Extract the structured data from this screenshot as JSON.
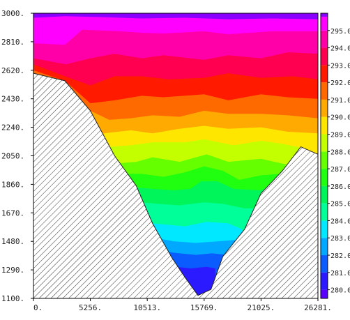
{
  "chart_data": {
    "type": "contour",
    "title": "",
    "xlabel": "",
    "ylabel": "",
    "xlim": [
      0,
      26281
    ],
    "ylim": [
      1100,
      3000
    ],
    "x_ticks": [
      "0.",
      "5256.",
      "10513.",
      "15769.",
      "21025.",
      "26281."
    ],
    "x_tick_values": [
      0,
      5256,
      10513,
      15769,
      21025,
      26281
    ],
    "y_ticks": [
      "3000.",
      "2810.",
      "2620.",
      "2430.",
      "2240.",
      "2050.",
      "1860.",
      "1670.",
      "1480.",
      "1290.",
      "1100."
    ],
    "y_tick_values": [
      3000,
      2810,
      2620,
      2430,
      2240,
      2050,
      1860,
      1670,
      1480,
      1290,
      1100
    ],
    "terrain_profile": [
      {
        "x": 0,
        "y": 2600
      },
      {
        "x": 2900,
        "y": 2550
      },
      {
        "x": 5256,
        "y": 2350
      },
      {
        "x": 7500,
        "y": 2050
      },
      {
        "x": 9500,
        "y": 1850
      },
      {
        "x": 11000,
        "y": 1600
      },
      {
        "x": 12800,
        "y": 1370
      },
      {
        "x": 14000,
        "y": 1240
      },
      {
        "x": 15200,
        "y": 1120
      },
      {
        "x": 16400,
        "y": 1160
      },
      {
        "x": 17500,
        "y": 1380
      },
      {
        "x": 19500,
        "y": 1560
      },
      {
        "x": 21025,
        "y": 1800
      },
      {
        "x": 23000,
        "y": 1950
      },
      {
        "x": 24700,
        "y": 2110
      },
      {
        "x": 26281,
        "y": 2060
      }
    ],
    "contour_bounds": [
      {
        "level": 295.0,
        "points": [
          [
            0,
            2970
          ],
          [
            2900,
            2980
          ],
          [
            6000,
            2975
          ],
          [
            10000,
            2965
          ],
          [
            14000,
            2970
          ],
          [
            18000,
            2960
          ],
          [
            22000,
            2965
          ],
          [
            26281,
            2960
          ]
        ]
      },
      {
        "level": 294.0,
        "points": [
          [
            0,
            2800
          ],
          [
            2900,
            2790
          ],
          [
            4500,
            2890
          ],
          [
            8000,
            2880
          ],
          [
            10000,
            2870
          ],
          [
            12000,
            2865
          ],
          [
            15769,
            2880
          ],
          [
            18000,
            2860
          ],
          [
            22000,
            2880
          ],
          [
            26281,
            2880
          ]
        ]
      },
      {
        "level": 293.0,
        "points": [
          [
            0,
            2700
          ],
          [
            3000,
            2660
          ],
          [
            5256,
            2700
          ],
          [
            7500,
            2730
          ],
          [
            10000,
            2700
          ],
          [
            12000,
            2720
          ],
          [
            15769,
            2690
          ],
          [
            18000,
            2720
          ],
          [
            21025,
            2700
          ],
          [
            23500,
            2740
          ],
          [
            26281,
            2730
          ]
        ]
      },
      {
        "level": 292.0,
        "points": [
          [
            0,
            2660
          ],
          [
            2900,
            2580
          ],
          [
            5256,
            2520
          ],
          [
            7500,
            2580
          ],
          [
            10000,
            2580
          ],
          [
            12500,
            2560
          ],
          [
            15769,
            2570
          ],
          [
            18000,
            2600
          ],
          [
            21025,
            2570
          ],
          [
            24000,
            2580
          ],
          [
            26281,
            2560
          ]
        ]
      },
      {
        "level": 291.0,
        "points": [
          [
            0,
            2620
          ],
          [
            2900,
            2550
          ],
          [
            5256,
            2400
          ],
          [
            7500,
            2420
          ],
          [
            10000,
            2450
          ],
          [
            12000,
            2440
          ],
          [
            15769,
            2460
          ],
          [
            18000,
            2420
          ],
          [
            21025,
            2460
          ],
          [
            23500,
            2440
          ],
          [
            26281,
            2430
          ]
        ]
      },
      {
        "level": 290.0,
        "points": [
          [
            5256,
            2350
          ],
          [
            7000,
            2290
          ],
          [
            9000,
            2300
          ],
          [
            11000,
            2320
          ],
          [
            13500,
            2310
          ],
          [
            15769,
            2350
          ],
          [
            18000,
            2330
          ],
          [
            21025,
            2330
          ],
          [
            23500,
            2320
          ],
          [
            26281,
            2300
          ]
        ]
      },
      {
        "level": 289.0,
        "points": [
          [
            6500,
            2200
          ],
          [
            9000,
            2220
          ],
          [
            11000,
            2200
          ],
          [
            13500,
            2230
          ],
          [
            15769,
            2250
          ],
          [
            18000,
            2230
          ],
          [
            21025,
            2240
          ],
          [
            23500,
            2210
          ],
          [
            26281,
            2200
          ]
        ]
      },
      {
        "level": 288.0,
        "points": [
          [
            7000,
            2110
          ],
          [
            9000,
            2120
          ],
          [
            11000,
            2140
          ],
          [
            14000,
            2140
          ],
          [
            15769,
            2160
          ],
          [
            18500,
            2120
          ],
          [
            21025,
            2150
          ],
          [
            23000,
            2130
          ],
          [
            25000,
            2100
          ]
        ]
      },
      {
        "level": 287.0,
        "points": [
          [
            7800,
            2000
          ],
          [
            9500,
            2010
          ],
          [
            11000,
            2040
          ],
          [
            13500,
            2010
          ],
          [
            16000,
            2060
          ],
          [
            18000,
            2010
          ],
          [
            21025,
            2030
          ],
          [
            23500,
            1990
          ]
        ]
      },
      {
        "level": 286.0,
        "points": [
          [
            8400,
            1930
          ],
          [
            10000,
            1930
          ],
          [
            12000,
            1910
          ],
          [
            14000,
            1940
          ],
          [
            15769,
            1980
          ],
          [
            17500,
            1950
          ],
          [
            19000,
            1890
          ],
          [
            21025,
            1920
          ],
          [
            22700,
            1930
          ]
        ]
      },
      {
        "level": 285.0,
        "points": [
          [
            9300,
            1840
          ],
          [
            11000,
            1830
          ],
          [
            13000,
            1820
          ],
          [
            14500,
            1830
          ],
          [
            15500,
            1880
          ],
          [
            17000,
            1880
          ],
          [
            18500,
            1830
          ],
          [
            21025,
            1820
          ],
          [
            21600,
            1840
          ]
        ]
      },
      {
        "level": 284.0,
        "points": [
          [
            10000,
            1740
          ],
          [
            11500,
            1730
          ],
          [
            13500,
            1720
          ],
          [
            15769,
            1740
          ],
          [
            17500,
            1730
          ],
          [
            19500,
            1700
          ],
          [
            20600,
            1700
          ]
        ]
      },
      {
        "level": 283.0,
        "points": [
          [
            11000,
            1600
          ],
          [
            12500,
            1590
          ],
          [
            14000,
            1580
          ],
          [
            16000,
            1610
          ],
          [
            18000,
            1600
          ],
          [
            19300,
            1560
          ]
        ]
      },
      {
        "level": 282.0,
        "points": [
          [
            11500,
            1500
          ],
          [
            13000,
            1480
          ],
          [
            15000,
            1470
          ],
          [
            17000,
            1480
          ],
          [
            18800,
            1490
          ]
        ]
      },
      {
        "level": 281.0,
        "points": [
          [
            12300,
            1410
          ],
          [
            13500,
            1400
          ],
          [
            15000,
            1390
          ],
          [
            16500,
            1400
          ],
          [
            17900,
            1390
          ]
        ]
      },
      {
        "level": 280.0,
        "points": [
          [
            13200,
            1310
          ],
          [
            14500,
            1300
          ],
          [
            16000,
            1310
          ],
          [
            16800,
            1300
          ]
        ]
      }
    ],
    "colorbar": {
      "min": 279.5,
      "max": 296.0,
      "tick_labels": [
        "280.0",
        "281.0",
        "282.0",
        "283.0",
        "284.0",
        "285.0",
        "286.0",
        "287.0",
        "288.0",
        "289.0",
        "290.0",
        "291.0",
        "292.0",
        "293.0",
        "294.0",
        "295.0"
      ],
      "tick_values": [
        280,
        281,
        282,
        283,
        284,
        285,
        286,
        287,
        288,
        289,
        290,
        291,
        292,
        293,
        294,
        295
      ],
      "bands": [
        {
          "level": 279.5,
          "color": "#5a00ff"
        },
        {
          "level": 280.0,
          "color": "#2b1aff"
        },
        {
          "level": 281.0,
          "color": "#0a5cff"
        },
        {
          "level": 282.0,
          "color": "#00a8ff"
        },
        {
          "level": 283.0,
          "color": "#00e8ff"
        },
        {
          "level": 284.0,
          "color": "#00ff99"
        },
        {
          "level": 285.0,
          "color": "#00f55a"
        },
        {
          "level": 286.0,
          "color": "#20ff10"
        },
        {
          "level": 287.0,
          "color": "#66ff00"
        },
        {
          "level": 288.0,
          "color": "#c4ff00"
        },
        {
          "level": 289.0,
          "color": "#ffe600"
        },
        {
          "level": 290.0,
          "color": "#ffaa00"
        },
        {
          "level": 291.0,
          "color": "#ff6a00"
        },
        {
          "level": 292.0,
          "color": "#ff1a00"
        },
        {
          "level": 293.0,
          "color": "#ff0050"
        },
        {
          "level": 294.0,
          "color": "#ff00a8"
        },
        {
          "level": 295.0,
          "color": "#ff00ff"
        },
        {
          "level": 295.8,
          "color": "#8a00ff"
        }
      ]
    },
    "terrain_fill": "hatched",
    "grid": false,
    "legend": "colorbar-right"
  }
}
